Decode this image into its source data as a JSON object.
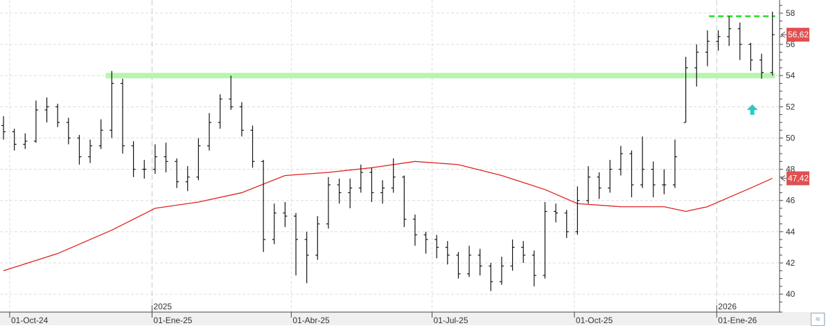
{
  "chart_data": {
    "type": "ohlc",
    "title": "",
    "xlabel": "",
    "ylabel": "",
    "ylim": [
      39.3,
      59
    ],
    "y_ticks": [
      40,
      42,
      44,
      46,
      48,
      50,
      52,
      54,
      56,
      58
    ],
    "grid": true,
    "x_tick_labels": [
      {
        "date": "2024-10-01",
        "label": "01-Oct-24"
      },
      {
        "date": "2025-01-01",
        "label": "01-Ene-25",
        "year": "2025"
      },
      {
        "date": "2025-04-01",
        "label": "01-Abr-25"
      },
      {
        "date": "2025-07-01",
        "label": "01-Jul-25"
      },
      {
        "date": "2025-10-01",
        "label": "01-Oct-25"
      },
      {
        "date": "2026-01-01",
        "label": "01-Ene-26",
        "year": "2026"
      }
    ],
    "bars_fields": [
      "date",
      "open",
      "high",
      "low",
      "close"
    ],
    "bars": [
      [
        "2024-09-27",
        50.8,
        51.4,
        49.9,
        50.4
      ],
      [
        "2024-10-04",
        50.4,
        50.6,
        49.2,
        49.6
      ],
      [
        "2024-10-11",
        49.6,
        50.3,
        49.3,
        49.8
      ],
      [
        "2024-10-18",
        49.8,
        52.4,
        49.7,
        51.8
      ],
      [
        "2024-10-25",
        51.8,
        52.6,
        51.0,
        52.0
      ],
      [
        "2024-11-01",
        52.0,
        52.2,
        50.7,
        51.0
      ],
      [
        "2024-11-08",
        51.0,
        51.3,
        49.6,
        50.0
      ],
      [
        "2024-11-15",
        50.0,
        50.2,
        48.3,
        48.8
      ],
      [
        "2024-11-22",
        48.8,
        49.9,
        48.4,
        49.5
      ],
      [
        "2024-11-29",
        49.5,
        51.2,
        49.3,
        50.5
      ],
      [
        "2024-12-06",
        50.5,
        54.3,
        50.0,
        53.5
      ],
      [
        "2024-12-13",
        53.5,
        53.8,
        49.0,
        49.5
      ],
      [
        "2024-12-20",
        49.5,
        49.8,
        47.5,
        48.0
      ],
      [
        "2024-12-27",
        48.0,
        48.6,
        47.4,
        48.0
      ],
      [
        "2025-01-03",
        48.0,
        49.6,
        47.7,
        48.8
      ],
      [
        "2025-01-10",
        48.8,
        49.7,
        47.8,
        48.5
      ],
      [
        "2025-01-17",
        48.5,
        48.7,
        46.8,
        47.2
      ],
      [
        "2025-01-24",
        47.2,
        48.2,
        46.6,
        47.5
      ],
      [
        "2025-01-31",
        47.5,
        50.0,
        47.3,
        49.5
      ],
      [
        "2025-02-07",
        49.5,
        51.6,
        49.2,
        51.0
      ],
      [
        "2025-02-14",
        51.0,
        52.8,
        50.6,
        52.5
      ],
      [
        "2025-02-21",
        52.5,
        54.0,
        51.8,
        52.0
      ],
      [
        "2025-02-28",
        52.0,
        52.3,
        50.1,
        50.5
      ],
      [
        "2025-03-07",
        50.5,
        50.8,
        48.1,
        48.5
      ],
      [
        "2025-03-14",
        48.5,
        48.6,
        42.7,
        43.5
      ],
      [
        "2025-03-21",
        43.5,
        45.8,
        43.2,
        45.2
      ],
      [
        "2025-03-28",
        45.2,
        45.9,
        44.3,
        45.0
      ],
      [
        "2025-04-04",
        45.0,
        45.2,
        41.2,
        43.5
      ],
      [
        "2025-04-11",
        43.5,
        44.0,
        40.7,
        42.5
      ],
      [
        "2025-04-18",
        42.5,
        45.0,
        42.2,
        44.5
      ],
      [
        "2025-04-25",
        44.5,
        47.5,
        44.2,
        47.0
      ],
      [
        "2025-05-02",
        47.0,
        47.4,
        45.8,
        46.5
      ],
      [
        "2025-05-09",
        46.5,
        47.4,
        45.5,
        46.8
      ],
      [
        "2025-05-16",
        46.8,
        48.3,
        46.5,
        47.8
      ],
      [
        "2025-05-23",
        47.8,
        48.1,
        45.9,
        46.5
      ],
      [
        "2025-05-30",
        46.5,
        47.3,
        45.8,
        46.8
      ],
      [
        "2025-06-06",
        46.8,
        48.7,
        46.5,
        47.5
      ],
      [
        "2025-06-13",
        47.5,
        47.6,
        44.3,
        44.8
      ],
      [
        "2025-06-20",
        44.8,
        45.1,
        43.1,
        43.8
      ],
      [
        "2025-06-27",
        43.8,
        44.0,
        42.6,
        43.5
      ],
      [
        "2025-07-04",
        43.5,
        43.8,
        42.3,
        43.0
      ],
      [
        "2025-07-11",
        43.0,
        43.4,
        41.9,
        42.5
      ],
      [
        "2025-07-18",
        42.5,
        42.7,
        41.0,
        41.3
      ],
      [
        "2025-07-25",
        41.3,
        43.1,
        41.1,
        42.5
      ],
      [
        "2025-08-01",
        42.5,
        42.9,
        41.2,
        41.8
      ],
      [
        "2025-08-08",
        41.8,
        42.0,
        40.2,
        40.8
      ],
      [
        "2025-08-15",
        40.8,
        42.4,
        40.6,
        41.8
      ],
      [
        "2025-08-22",
        41.8,
        43.5,
        41.5,
        43.0
      ],
      [
        "2025-08-29",
        43.0,
        43.4,
        42.0,
        42.5
      ],
      [
        "2025-09-05",
        42.5,
        42.8,
        40.5,
        41.2
      ],
      [
        "2025-09-12",
        41.2,
        45.9,
        41.0,
        45.3
      ],
      [
        "2025-09-19",
        45.3,
        45.8,
        44.6,
        45.2
      ],
      [
        "2025-09-26",
        45.2,
        45.4,
        43.6,
        44.0
      ],
      [
        "2025-10-03",
        44.0,
        46.9,
        43.8,
        46.0
      ],
      [
        "2025-10-10",
        46.0,
        48.2,
        45.8,
        47.5
      ],
      [
        "2025-10-17",
        47.5,
        47.8,
        46.1,
        46.8
      ],
      [
        "2025-10-24",
        46.8,
        48.6,
        46.5,
        48.0
      ],
      [
        "2025-10-31",
        48.0,
        49.5,
        47.6,
        49.0
      ],
      [
        "2025-11-07",
        49.0,
        49.2,
        46.2,
        47.0
      ],
      [
        "2025-11-14",
        47.0,
        50.1,
        46.8,
        48.0
      ],
      [
        "2025-11-21",
        48.0,
        48.5,
        46.2,
        47.0
      ],
      [
        "2025-11-28",
        47.0,
        48.0,
        46.4,
        47.0
      ],
      [
        "2025-12-05",
        47.0,
        49.9,
        46.8,
        48.8
      ],
      [
        "2025-12-12",
        51.0,
        55.2,
        51.0,
        54.5
      ],
      [
        "2025-12-19",
        54.5,
        56.0,
        53.3,
        55.5
      ],
      [
        "2025-12-26",
        55.5,
        56.9,
        54.6,
        56.2
      ],
      [
        "2026-01-02",
        56.2,
        56.9,
        55.6,
        56.5
      ],
      [
        "2026-01-09",
        56.5,
        57.8,
        55.9,
        57.0
      ],
      [
        "2026-01-16",
        57.0,
        57.4,
        55.0,
        56.0
      ],
      [
        "2026-01-23",
        56.0,
        56.1,
        54.3,
        55.0
      ],
      [
        "2026-01-30",
        55.0,
        55.4,
        53.8,
        54.2
      ],
      [
        "2026-02-06",
        54.2,
        58.1,
        54.0,
        56.62
      ]
    ],
    "moving_average": {
      "color": "#e02020",
      "points": [
        [
          "2024-09-27",
          41.5
        ],
        [
          "2024-11-01",
          42.6
        ],
        [
          "2024-12-06",
          44.1
        ],
        [
          "2025-01-03",
          45.5
        ],
        [
          "2025-01-31",
          45.9
        ],
        [
          "2025-02-28",
          46.5
        ],
        [
          "2025-03-28",
          47.6
        ],
        [
          "2025-04-25",
          47.8
        ],
        [
          "2025-05-23",
          48.1
        ],
        [
          "2025-06-20",
          48.5
        ],
        [
          "2025-07-18",
          48.3
        ],
        [
          "2025-08-15",
          47.6
        ],
        [
          "2025-09-12",
          46.7
        ],
        [
          "2025-10-03",
          45.8
        ],
        [
          "2025-10-31",
          45.6
        ],
        [
          "2025-11-28",
          45.6
        ],
        [
          "2025-12-12",
          45.3
        ],
        [
          "2025-12-26",
          45.6
        ],
        [
          "2026-01-09",
          46.2
        ],
        [
          "2026-01-23",
          46.8
        ],
        [
          "2026-02-06",
          47.42
        ]
      ]
    },
    "levels": [
      {
        "type": "band",
        "value": 54.0,
        "from": "2024-12-02",
        "to": "2026-02-06",
        "color": "#b8f5b0"
      },
      {
        "type": "dashed",
        "value": 57.8,
        "from": "2025-12-27",
        "to": "2026-02-06",
        "color": "#22dd22"
      }
    ],
    "markers": [
      {
        "type": "arrow-up",
        "date": "2026-01-24",
        "value": 51.8,
        "color": "#2ec8c8"
      }
    ],
    "price_labels": [
      {
        "value": 56.62,
        "text": "56,62",
        "color": "#e05050"
      },
      {
        "value": 47.42,
        "text": "47,42",
        "color": "#e05050"
      }
    ]
  }
}
